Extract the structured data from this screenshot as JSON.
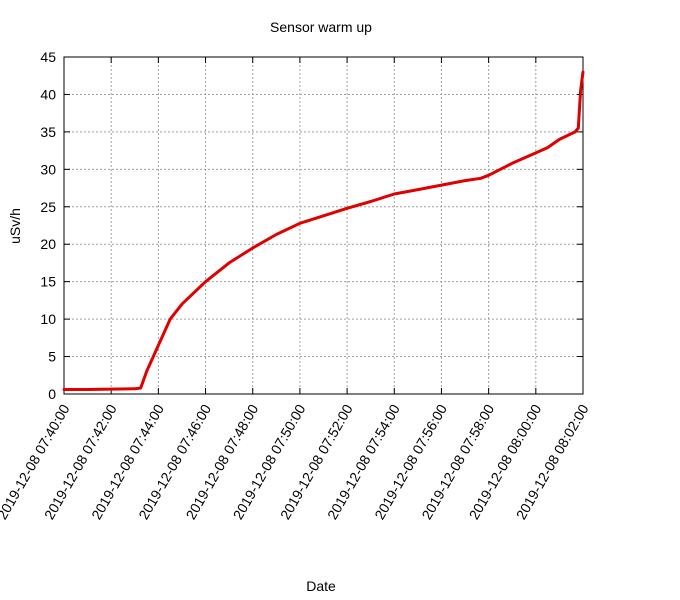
{
  "chart_data": {
    "type": "line",
    "title": "Sensor warm up",
    "xlabel": "Date",
    "ylabel": "uSv/h",
    "x_axis_type": "time",
    "xlim": [
      "2019-12-08 07:40:00",
      "2019-12-08 08:02:00"
    ],
    "ylim": [
      0,
      45
    ],
    "grid": true,
    "legend": "none",
    "x_ticks": [
      "2019-12-08 07:40:00",
      "2019-12-08 07:42:00",
      "2019-12-08 07:44:00",
      "2019-12-08 07:46:00",
      "2019-12-08 07:48:00",
      "2019-12-08 07:50:00",
      "2019-12-08 07:52:00",
      "2019-12-08 07:54:00",
      "2019-12-08 07:56:00",
      "2019-12-08 07:58:00",
      "2019-12-08 08:00:00",
      "2019-12-08 08:02:00"
    ],
    "y_ticks": [
      "0",
      "5",
      "10",
      "15",
      "20",
      "25",
      "30",
      "35",
      "40",
      "45"
    ],
    "series": [
      {
        "color": "#e00000",
        "x": [
          "2019-12-08 07:40:00",
          "2019-12-08 07:41:00",
          "2019-12-08 07:42:00",
          "2019-12-08 07:43:00",
          "2019-12-08 07:43:15",
          "2019-12-08 07:43:30",
          "2019-12-08 07:44:00",
          "2019-12-08 07:44:30",
          "2019-12-08 07:45:00",
          "2019-12-08 07:46:00",
          "2019-12-08 07:47:00",
          "2019-12-08 07:48:00",
          "2019-12-08 07:49:00",
          "2019-12-08 07:50:00",
          "2019-12-08 07:51:00",
          "2019-12-08 07:52:00",
          "2019-12-08 07:53:00",
          "2019-12-08 07:54:00",
          "2019-12-08 07:55:00",
          "2019-12-08 07:56:00",
          "2019-12-08 07:57:00",
          "2019-12-08 07:57:40",
          "2019-12-08 07:58:00",
          "2019-12-08 07:59:00",
          "2019-12-08 08:00:00",
          "2019-12-08 08:00:30",
          "2019-12-08 08:01:00",
          "2019-12-08 08:01:40",
          "2019-12-08 08:01:48",
          "2019-12-08 08:01:54",
          "2019-12-08 08:02:00"
        ],
        "y": [
          0.6,
          0.6,
          0.65,
          0.7,
          0.8,
          3.0,
          6.5,
          10.0,
          12.0,
          15.0,
          17.5,
          19.5,
          21.3,
          22.8,
          23.8,
          24.8,
          25.7,
          26.7,
          27.3,
          27.9,
          28.5,
          28.8,
          29.2,
          30.8,
          32.2,
          32.9,
          34.0,
          35.0,
          35.5,
          40.5,
          43.0
        ]
      }
    ]
  }
}
